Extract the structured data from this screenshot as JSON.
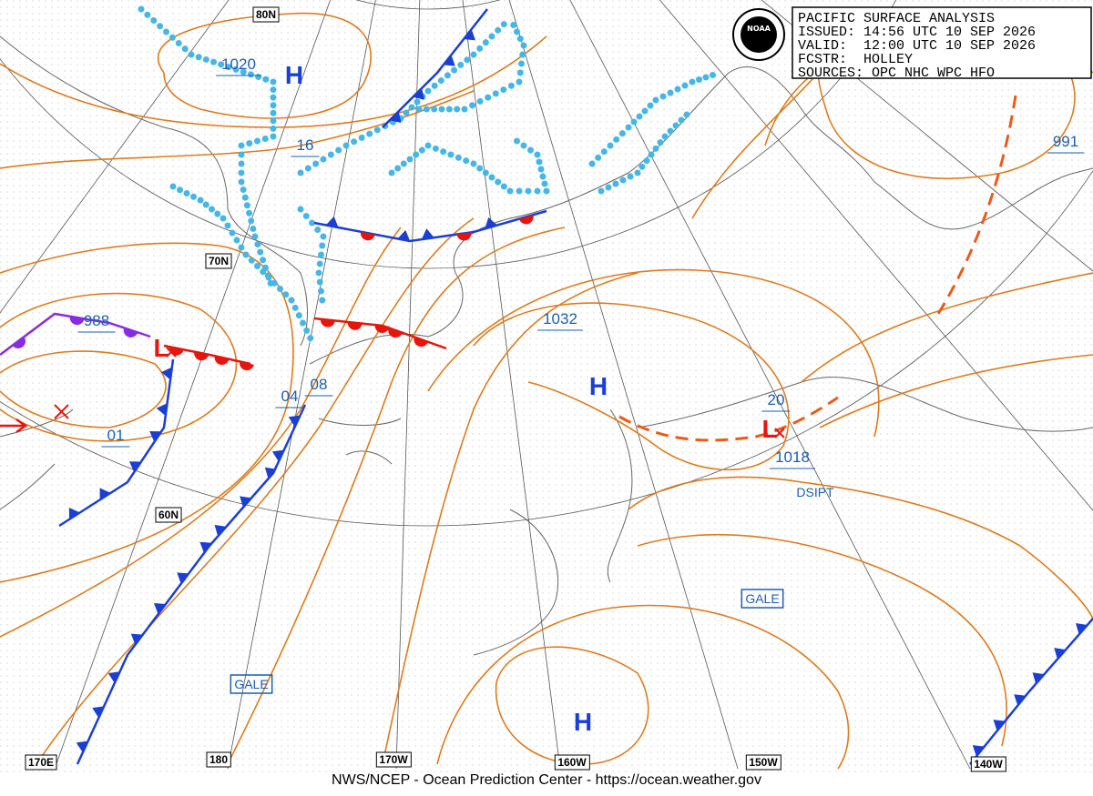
{
  "header": {
    "logo": "NOAA",
    "lines": [
      "PACIFIC SURFACE ANALYSIS",
      "ISSUED: 14:56 UTC 10 SEP 2026",
      "VALID:  12:00 UTC 10 SEP 2026",
      "FCSTR:  HOLLEY",
      "SOURCES: OPC NHC WPC HFO"
    ]
  },
  "graticule_labels": [
    "80N",
    "70N",
    "60N",
    "170E",
    "180",
    "170W",
    "160W",
    "150W",
    "140W"
  ],
  "isobar_labels": [
    "1020",
    "16",
    "988",
    "01",
    "04",
    "08",
    "1032",
    "20",
    "1018",
    "991"
  ],
  "pressure_centers": [
    "H",
    "H",
    "H",
    "L",
    "L"
  ],
  "annotations": [
    "DSIPT",
    "GALE",
    "GALE"
  ],
  "footer": "NWS/NCEP - Ocean Prediction Center - https://ocean.weather.gov"
}
